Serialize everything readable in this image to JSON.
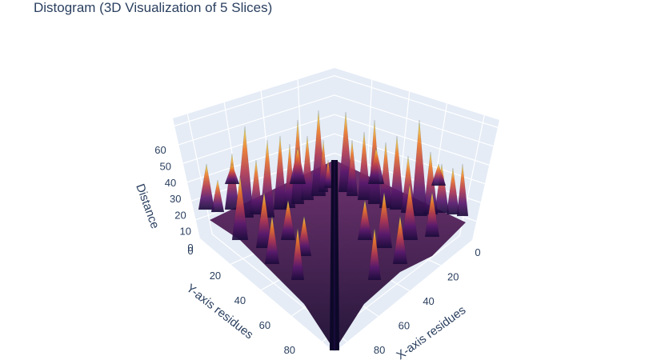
{
  "chart_data": {
    "type": "surface",
    "title": "Distogram (3D Visualization of 5 Slices)",
    "xlabel": "X-axis residues",
    "ylabel": "Y-axis residues",
    "zlabel": "Distance",
    "xticks": [
      "0",
      "20",
      "40",
      "60",
      "80"
    ],
    "yticks": [
      "0",
      "20",
      "40",
      "60",
      "80"
    ],
    "zticks": [
      "0",
      "10",
      "20",
      "30",
      "40",
      "50",
      "60"
    ],
    "xlim": [
      0,
      80
    ],
    "ylim": [
      0,
      80
    ],
    "zlim": [
      0,
      65
    ],
    "grid": true,
    "colorscale": [
      "#0d0829",
      "#3b0f70",
      "#6b1d6e",
      "#9c2f5d",
      "#cc4a3e",
      "#ec7228",
      "#f6a623",
      "#e8d24a",
      "#7fd17a"
    ],
    "colors": {
      "background": "#e5ecf6",
      "gridline": "#ffffff",
      "text": "#2a3f5f"
    }
  }
}
